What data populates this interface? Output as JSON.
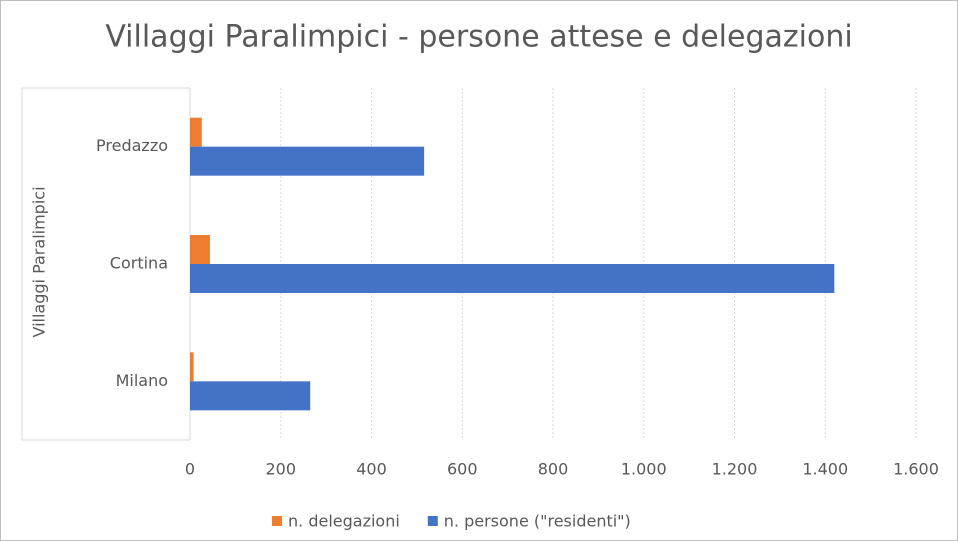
{
  "chart_data": {
    "type": "hbar",
    "title": "Villaggi Paralimpici - persone attese e delegazioni",
    "y_label": "Villaggi Paralimpici",
    "categories": [
      "Predazzo",
      "Cortina",
      "Milano"
    ],
    "series": [
      {
        "name": "n. delegazioni",
        "color": "#ed7d31",
        "values": [
          26,
          44,
          8
        ]
      },
      {
        "name": "n. persone (\"residenti\")",
        "color": "#4472c4",
        "values": [
          516,
          1420,
          265
        ]
      }
    ],
    "xlim": [
      0,
      1600
    ],
    "xticks": [
      0,
      200,
      400,
      600,
      800,
      {
        "value": 1000,
        "label": "1.000"
      },
      {
        "value": 1200,
        "label": "1.200"
      },
      {
        "value": 1400,
        "label": "1.400"
      },
      {
        "value": 1600,
        "label": "1.600"
      }
    ],
    "grid": true,
    "legend": "bottom"
  }
}
